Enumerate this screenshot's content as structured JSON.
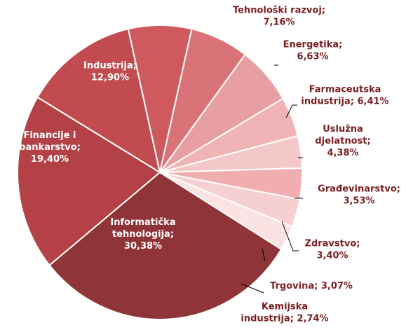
{
  "chart_data": {
    "type": "pie",
    "title": "",
    "slices": [
      {
        "label_lines": [
          "Informatička",
          "tehnologija;",
          "30,38%"
        ],
        "name": "Informatička tehnologija",
        "value": 30.38,
        "color": "#8f3438",
        "label_color": "#ffffff"
      },
      {
        "label_lines": [
          "Financije i",
          "bankarstvo;",
          "19,40%"
        ],
        "name": "Financije i bankarstvo",
        "value": 19.4,
        "color": "#b44146",
        "label_color": "#ffffff"
      },
      {
        "label_lines": [
          "Industrija;",
          "12,90%"
        ],
        "name": "Industrija",
        "value": 12.9,
        "color": "#c14b4f",
        "label_color": "#ffffff"
      },
      {
        "label_lines": [
          "Tehnološki  razvoj;",
          "7,16%"
        ],
        "name": "Tehnološki razvoj",
        "value": 7.16,
        "color": "#cf5a5e",
        "label_color": "#7a1f22"
      },
      {
        "label_lines": [
          "Energetika;",
          "6,63%"
        ],
        "name": "Energetika",
        "value": 6.63,
        "color": "#da7377",
        "label_color": "#7a1f22"
      },
      {
        "label_lines": [
          "Farmaceutska",
          "industrija;  6,41%"
        ],
        "name": "Farmaceutska industrija",
        "value": 6.41,
        "color": "#e89fa2",
        "label_color": "#7a1f22"
      },
      {
        "label_lines": [
          "Uslužna",
          "djelatnost;",
          "4,38%"
        ],
        "name": "Uslužna djelatnost",
        "value": 4.38,
        "color": "#f0b4b6",
        "label_color": "#7a1f22"
      },
      {
        "label_lines": [
          "Građevinarstvo;",
          "3,53%"
        ],
        "name": "Građevinarstvo",
        "value": 3.53,
        "color": "#f4c7c8",
        "label_color": "#7a1f22"
      },
      {
        "label_lines": [
          "Zdravstvo;",
          "3,40%"
        ],
        "name": "Zdravstvo",
        "value": 3.4,
        "color": "#f0aeb0",
        "label_color": "#7a1f22"
      },
      {
        "label_lines": [
          "Trgovina;  3,07%"
        ],
        "name": "Trgovina",
        "value": 3.07,
        "color": "#f6d0d1",
        "label_color": "#7a1f22"
      },
      {
        "label_lines": [
          "Kemijska",
          "industrija;  2,74%"
        ],
        "name": "Kemijska industrija",
        "value": 2.74,
        "color": "#fbe3e3",
        "label_color": "#7a1f22"
      }
    ],
    "legend": "none",
    "data_labels": "category and percentage"
  }
}
